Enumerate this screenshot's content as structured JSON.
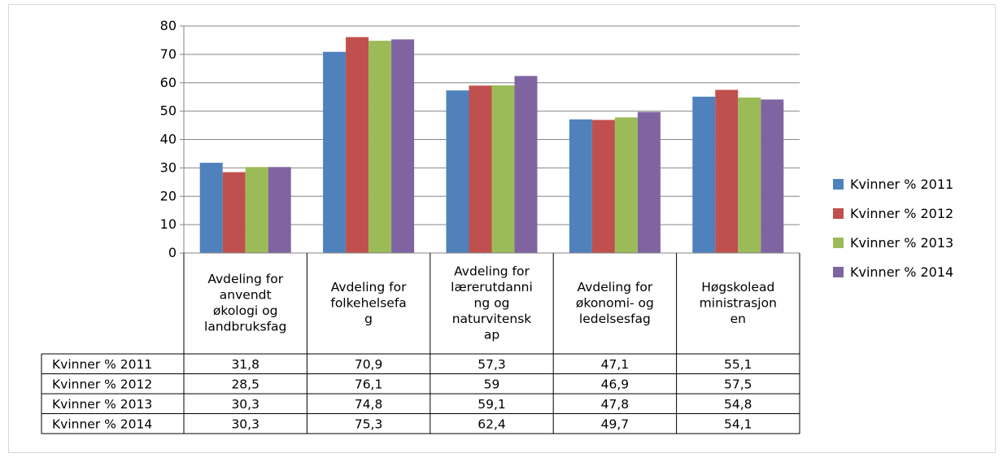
{
  "chart_data": {
    "type": "bar",
    "title": "",
    "xlabel": "",
    "ylabel": "",
    "ylim": [
      0,
      80
    ],
    "yticks": [
      0,
      10,
      20,
      30,
      40,
      50,
      60,
      70,
      80
    ],
    "grid": true,
    "legend_position": "right",
    "data_table": true,
    "categories": [
      [
        "Avdeling for",
        "anvendt",
        "økologi og",
        "landbruksfag"
      ],
      [
        "Avdeling for",
        "folkehelsefa",
        "g"
      ],
      [
        "Avdeling for",
        "lærerutdanni",
        "ng og",
        "naturvitensk",
        "ap"
      ],
      [
        "Avdeling for",
        "økonomi- og",
        "ledelsesfag"
      ],
      [
        "Høgskolead",
        "ministrasjon",
        "en"
      ]
    ],
    "series": [
      {
        "name": "Kvinner % 2011",
        "color": "#4f81bd",
        "values": [
          31.8,
          70.9,
          57.3,
          47.1,
          55.1
        ],
        "labels": [
          "31,8",
          "70,9",
          "57,3",
          "47,1",
          "55,1"
        ]
      },
      {
        "name": "Kvinner % 2012",
        "color": "#c0504d",
        "values": [
          28.5,
          76.1,
          59,
          46.9,
          57.5
        ],
        "labels": [
          "28,5",
          "76,1",
          "59",
          "46,9",
          "57,5"
        ]
      },
      {
        "name": "Kvinner % 2013",
        "color": "#9bbb59",
        "values": [
          30.3,
          74.8,
          59.1,
          47.8,
          54.8
        ],
        "labels": [
          "30,3",
          "74,8",
          "59,1",
          "47,8",
          "54,8"
        ]
      },
      {
        "name": "Kvinner % 2014",
        "color": "#8064a2",
        "values": [
          30.3,
          75.3,
          62.4,
          49.7,
          54.1
        ],
        "labels": [
          "30,3",
          "75,3",
          "62,4",
          "49,7",
          "54,1"
        ]
      }
    ]
  }
}
